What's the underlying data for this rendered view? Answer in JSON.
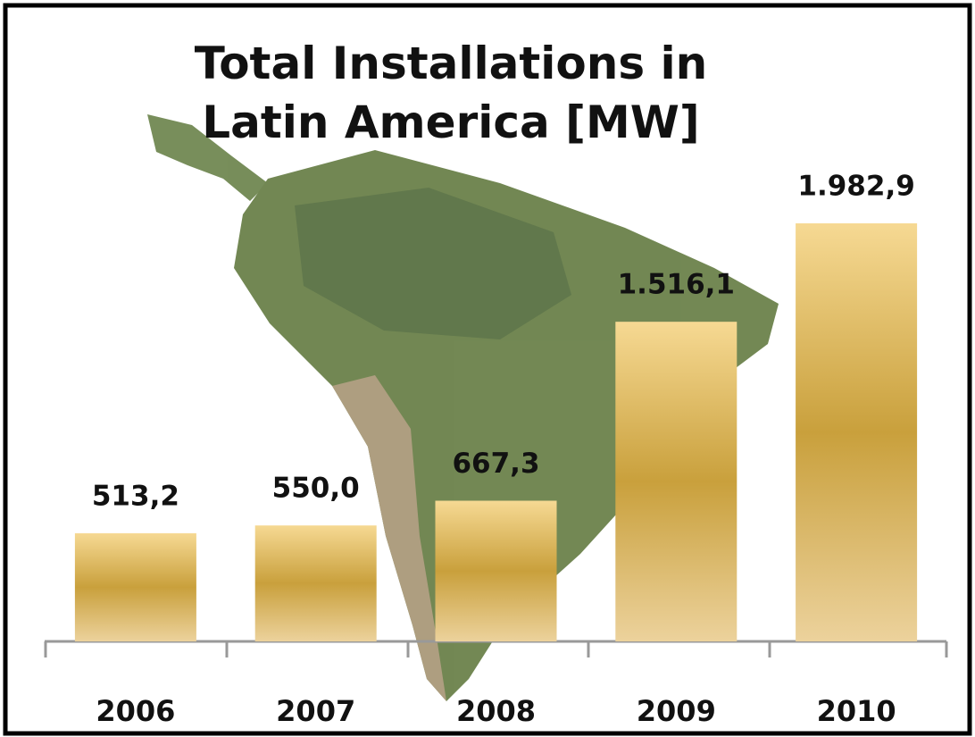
{
  "chart_data": {
    "type": "bar",
    "title": "Total Installations in Latin America [MW]",
    "categories": [
      "2006",
      "2007",
      "2008",
      "2009",
      "2010"
    ],
    "values": [
      513.2,
      550.0,
      667.3,
      1516.1,
      1982.9
    ],
    "value_labels": [
      "513,2",
      "550,0",
      "667,3",
      "1.516,1",
      "1.982,9"
    ],
    "color": "#c9a03c"
  }
}
